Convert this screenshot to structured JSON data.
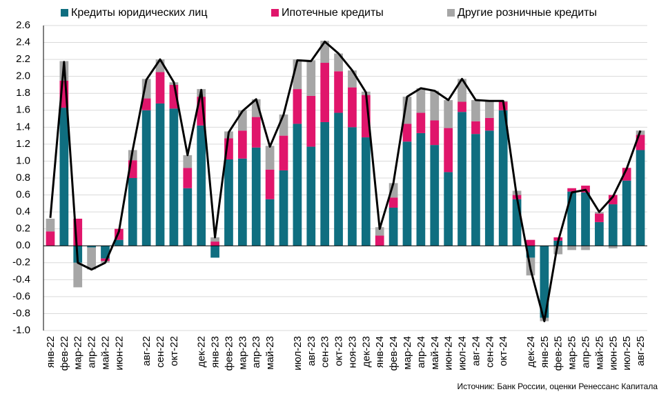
{
  "chart_data": {
    "type": "stacked_bar_line",
    "source": "Источник: Банк России, оценки Ренессанс Капитала",
    "categories": [
      "янв-22",
      "фев-22",
      "мар-22",
      "апр-22",
      "май-22",
      "июн-22",
      null,
      "авг-22",
      "сен-22",
      "окт-22",
      null,
      "дек-22",
      "янв-23",
      "фев-23",
      "мар-23",
      "апр-23",
      "май-23",
      null,
      "июл-23",
      "авг-23",
      "сен-23",
      "окт-23",
      "ноя-23",
      "дек-23",
      "янв-24",
      "фев-24",
      "мар-24",
      "апр-24",
      "май-24",
      "июн-24",
      "июл-24",
      "авг-24",
      "сен-24",
      "окт-24",
      null,
      "дек-24",
      "янв-25",
      "фев-25",
      "мар-25",
      "апр-25",
      "май-25",
      "июн-25",
      "июл-25",
      "авг-25"
    ],
    "series": [
      {
        "name": "Кредиты юридических лиц",
        "color": "#0f6e80",
        "values": [
          0,
          1.63,
          -0.2,
          -0.02,
          -0.15,
          0.07,
          0.8,
          1.6,
          1.68,
          1.62,
          0.68,
          1.42,
          -0.14,
          1.02,
          1.03,
          1.16,
          0.55,
          0.89,
          1.44,
          1.17,
          1.46,
          1.57,
          1.4,
          1.28,
          0,
          0.45,
          1.23,
          1.33,
          1.19,
          0.87,
          1.58,
          1.32,
          1.36,
          1.6,
          0.55,
          -0.14,
          -0.85,
          0.06,
          0.64,
          0.63,
          0.28,
          0.49,
          0.77,
          1.13
        ]
      },
      {
        "name": "Ипотечные кредиты",
        "color": "#e0156b",
        "values": [
          0.17,
          0.32,
          0.32,
          0,
          -0.03,
          0.13,
          0.21,
          0.14,
          0.37,
          0.28,
          0.24,
          0.34,
          0.05,
          0.25,
          0.33,
          0.36,
          0.35,
          0.41,
          0.41,
          0.6,
          0.7,
          0.49,
          0.47,
          0.5,
          0.12,
          0.12,
          0.21,
          0.24,
          0.29,
          0.52,
          0.12,
          0.15,
          0.15,
          0.1,
          0.05,
          0.07,
          0,
          0.04,
          0.04,
          0.08,
          0.1,
          0.11,
          0.15,
          0.18
        ]
      },
      {
        "name": "Другие розничные кредиты",
        "color": "#a6a6a6",
        "values": [
          0.15,
          0.23,
          -0.29,
          -0.26,
          -0.02,
          0,
          0.12,
          0.23,
          0.15,
          0.03,
          0.15,
          0.09,
          0.05,
          0.08,
          0.24,
          0.21,
          0.28,
          0.25,
          0.35,
          0.42,
          0.26,
          0.21,
          0.2,
          0.04,
          0.1,
          0.17,
          0.32,
          0.29,
          0.35,
          0.33,
          0.27,
          0.25,
          0.2,
          0.01,
          0.05,
          -0.21,
          -0.04,
          -0.1,
          -0.05,
          -0.05,
          0.02,
          -0.03,
          0,
          0.05
        ]
      }
    ],
    "line": {
      "color": "#000000",
      "values": [
        0.33,
        2.17,
        -0.2,
        -0.28,
        -0.2,
        0.17,
        1.13,
        1.96,
        2.2,
        1.93,
        1.07,
        1.84,
        0.1,
        1.34,
        1.59,
        1.73,
        1.17,
        1.55,
        2.19,
        2.18,
        2.41,
        2.27,
        2.07,
        1.81,
        0.2,
        0.74,
        1.76,
        1.86,
        1.83,
        1.72,
        1.97,
        1.72,
        1.71,
        1.71,
        0.57,
        -0.28,
        -0.89,
        0.05,
        0.63,
        0.66,
        0.4,
        0.58,
        0.91,
        1.36
      ]
    },
    "ylim": [
      -1.0,
      2.6
    ],
    "yticks": [
      {
        "value": -1.0,
        "label": "-1.0"
      },
      {
        "value": -0.8,
        "label": "-0.8"
      },
      {
        "value": -0.6,
        "label": "-0.6"
      },
      {
        "value": -0.4,
        "label": "-0.4"
      },
      {
        "value": -0.2,
        "label": "-0.2"
      },
      {
        "value": 0,
        "label": "0.0"
      },
      {
        "value": 0.2,
        "label": "0.2"
      },
      {
        "value": 0.4,
        "label": "0.4"
      },
      {
        "value": 0.6,
        "label": "0.6"
      },
      {
        "value": 0.8,
        "label": "0.8"
      },
      {
        "value": 1.0,
        "label": "1.0"
      },
      {
        "value": 1.2,
        "label": "1.2"
      },
      {
        "value": 1.4,
        "label": "1.4"
      },
      {
        "value": 1.6,
        "label": "1.6"
      },
      {
        "value": 1.8,
        "label": "1.8"
      },
      {
        "value": 2.0,
        "label": "2.0"
      },
      {
        "value": 2.2,
        "label": "2.2"
      },
      {
        "value": 2.4,
        "label": "2.4"
      },
      {
        "value": 2.6,
        "label": "2.6"
      }
    ],
    "grid": true
  }
}
